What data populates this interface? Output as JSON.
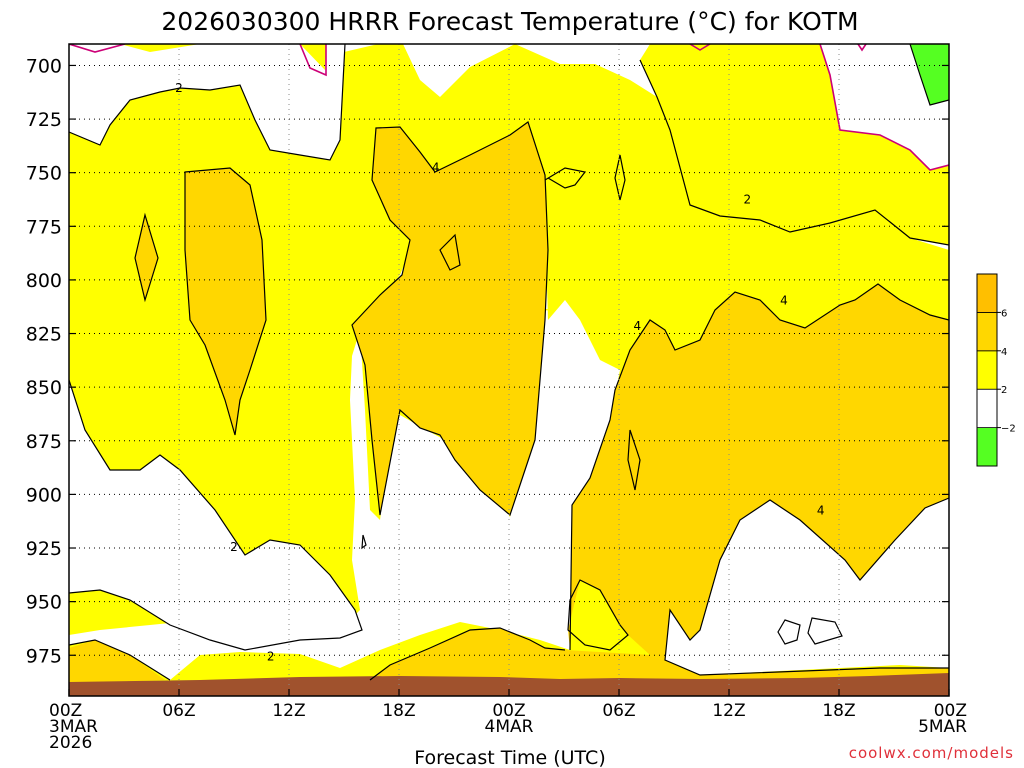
{
  "chart_data": {
    "type": "heatmap",
    "title": "2026030300 HRRR Forecast Temperature (°C) for KOTM",
    "xlabel": "Forecast Time (UTC)",
    "ylabel": "",
    "x_ticks": [
      {
        "hour": 0,
        "lines": [
          "00Z",
          "3MAR",
          "2026"
        ]
      },
      {
        "hour": 6,
        "lines": [
          "06Z"
        ]
      },
      {
        "hour": 12,
        "lines": [
          "12Z"
        ]
      },
      {
        "hour": 18,
        "lines": [
          "18Z"
        ]
      },
      {
        "hour": 24,
        "lines": [
          "00Z",
          "4MAR"
        ]
      },
      {
        "hour": 30,
        "lines": [
          "06Z"
        ]
      },
      {
        "hour": 36,
        "lines": [
          "12Z"
        ]
      },
      {
        "hour": 42,
        "lines": [
          "18Z"
        ]
      },
      {
        "hour": 48,
        "lines": [
          "00Z",
          "5MAR"
        ]
      }
    ],
    "xlim": [
      0,
      48
    ],
    "y_ticks": [
      700,
      725,
      750,
      775,
      800,
      825,
      850,
      875,
      900,
      925,
      950,
      975
    ],
    "ylim": [
      690,
      994
    ],
    "y_inverted": true,
    "grid": true,
    "ground_top_hpa": 988,
    "legend": {
      "placement": "right",
      "bins": [
        {
          "from": -4,
          "to": -2,
          "color": "#55ff22"
        },
        {
          "from": -2,
          "to": 2,
          "color": "#ffffff"
        },
        {
          "from": 2,
          "to": 4,
          "color": "#ffff00"
        },
        {
          "from": 4,
          "to": 6,
          "color": "#ffd700"
        },
        {
          "from": 6,
          "to": 8,
          "color": "#ffbf00"
        }
      ],
      "tick_labels": [
        "6",
        "4",
        "2",
        "−2"
      ]
    },
    "contour_labels": [
      {
        "text": "2",
        "x": 6.0,
        "y": 711
      },
      {
        "text": "4",
        "x": 20.0,
        "y": 748
      },
      {
        "text": "2",
        "x": 37.0,
        "y": 763
      },
      {
        "text": "4",
        "x": 39.0,
        "y": 810
      },
      {
        "text": "4",
        "x": 31.0,
        "y": 822
      },
      {
        "text": "4",
        "x": 41.0,
        "y": 908
      },
      {
        "text": "2",
        "x": 9.0,
        "y": 925
      },
      {
        "text": "2",
        "x": 11.0,
        "y": 976
      }
    ]
  },
  "colors": {
    "band_2_4": "#ffff00",
    "band_4_6": "#ffd700",
    "band_neg": "#55ff22",
    "ground": "#a0522d",
    "freezing_line": "#cc0077",
    "credit": "#e0303a"
  },
  "credit": "coolwx.com/models"
}
